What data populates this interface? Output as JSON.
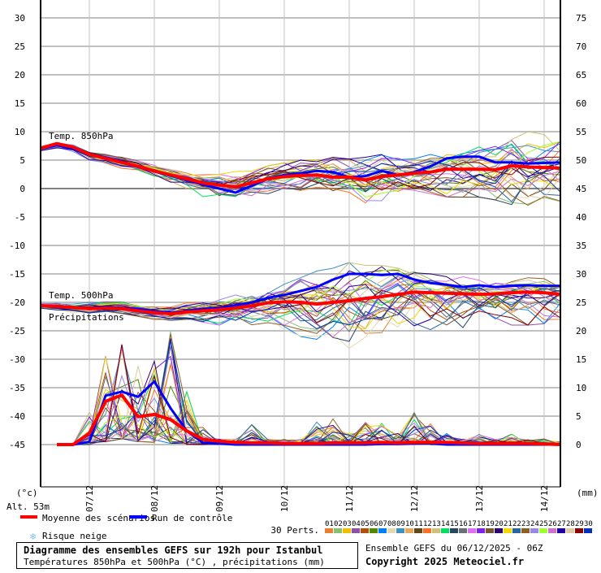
{
  "chart_data": {
    "type": "line",
    "left_axis": {
      "unit_label": "(°c)",
      "ticks": [
        30,
        25,
        20,
        15,
        10,
        5,
        0,
        -5,
        -10,
        -15,
        -20,
        -25,
        -30,
        -35,
        -40,
        -45
      ],
      "range": [
        -45,
        30
      ]
    },
    "right_axis": {
      "unit_label": "(mm)",
      "ticks": [
        75,
        70,
        65,
        60,
        55,
        50,
        45,
        40,
        35,
        30,
        25,
        20,
        15,
        10,
        5,
        0
      ],
      "range": [
        0,
        75
      ]
    },
    "x_tick_labels": [
      "07/12",
      "08/12",
      "09/12",
      "10/12",
      "11/12",
      "12/12",
      "13/12",
      "14/12"
    ],
    "grid": true,
    "series_labels": {
      "t850": "Temp. 850hPa",
      "t500": "Temp. 500hPa",
      "precip": "Précipitations"
    },
    "t850": {
      "mean": [
        7.1,
        7.9,
        7.3,
        6.0,
        5.3,
        4.6,
        3.9,
        3.1,
        2.4,
        1.7,
        1.0,
        0.6,
        0.3,
        1.0,
        1.7,
        2.1,
        2.3,
        2.4,
        2.0,
        2.0,
        1.5,
        2.1,
        2.4,
        2.7,
        2.9,
        3.4,
        3.4,
        3.4,
        3.3,
        4.0,
        3.8,
        3.7,
        3.6
      ],
      "control": [
        7.0,
        7.6,
        7.0,
        5.8,
        5.4,
        4.8,
        3.8,
        3.0,
        2.3,
        1.5,
        0.7,
        0.0,
        -0.7,
        0.5,
        1.7,
        2.4,
        2.7,
        3.1,
        2.9,
        2.0,
        2.2,
        3.1,
        2.4,
        2.9,
        3.9,
        5.3,
        5.6,
        5.6,
        4.6,
        4.6,
        4.4,
        4.5,
        4.6
      ],
      "members_min": [
        6.5,
        7.0,
        6.5,
        5.0,
        4.3,
        3.5,
        2.8,
        2.0,
        1.0,
        0.0,
        -1.5,
        -2.5,
        -2.5,
        -2.0,
        -1.5,
        -0.5,
        -1.5,
        -1.0,
        -1.5,
        -1.0,
        -2.5,
        -2.5,
        -1.5,
        -1.0,
        -1.0,
        -1.5,
        -1.5,
        -1.5,
        -2.0,
        -3.0,
        -3.0,
        -2.5,
        -2.5
      ],
      "members_max": [
        7.6,
        8.0,
        7.8,
        6.5,
        6.2,
        5.8,
        5.0,
        4.2,
        3.5,
        2.8,
        2.5,
        2.5,
        3.0,
        3.5,
        4.0,
        4.5,
        5.0,
        5.0,
        5.5,
        5.2,
        5.5,
        6.0,
        6.0,
        6.0,
        6.0,
        6.5,
        7.0,
        8.0,
        8.5,
        10.0,
        10.0,
        9.5,
        10.5
      ]
    },
    "t500": {
      "mean": [
        -20.6,
        -20.7,
        -20.9,
        -21.1,
        -21.0,
        -21.1,
        -21.5,
        -21.8,
        -22.0,
        -21.7,
        -21.5,
        -21.3,
        -21.0,
        -20.6,
        -20.1,
        -19.9,
        -20.0,
        -20.3,
        -20.0,
        -19.7,
        -19.3,
        -19.0,
        -18.6,
        -18.2,
        -18.3,
        -18.4,
        -18.5,
        -18.6,
        -18.5,
        -18.3,
        -18.2,
        -18.3,
        -18.6
      ],
      "control": [
        -20.5,
        -20.8,
        -20.9,
        -21.0,
        -20.8,
        -21.0,
        -21.2,
        -21.5,
        -21.8,
        -21.5,
        -21.2,
        -21.0,
        -20.5,
        -20.0,
        -19.2,
        -18.7,
        -18.0,
        -17.3,
        -16.0,
        -15.0,
        -15.0,
        -15.2,
        -15.0,
        -16.0,
        -16.6,
        -16.9,
        -17.3,
        -17.0,
        -17.3,
        -17.1,
        -17.0,
        -17.1,
        -17.1
      ],
      "members_min": [
        -21.2,
        -21.5,
        -21.8,
        -22.0,
        -22.0,
        -22.3,
        -22.8,
        -23.0,
        -23.2,
        -23.0,
        -23.5,
        -24.0,
        -24.0,
        -24.5,
        -24.0,
        -25.5,
        -26.0,
        -26.5,
        -27.5,
        -29.0,
        -28.5,
        -27.0,
        -26.5,
        -26.0,
        -25.5,
        -25.0,
        -25.0,
        -24.5,
        -24.0,
        -24.0,
        -24.0,
        -24.5,
        -24.5
      ],
      "members_max": [
        -20.0,
        -20.0,
        -20.2,
        -20.0,
        -19.8,
        -19.8,
        -20.0,
        -20.3,
        -20.5,
        -20.0,
        -19.5,
        -19.0,
        -18.5,
        -18.0,
        -17.0,
        -16.5,
        -15.5,
        -14.5,
        -14.0,
        -13.0,
        -13.5,
        -13.5,
        -14.0,
        -14.5,
        -15.0,
        -15.5,
        -15.5,
        -16.0,
        -16.0,
        -16.0,
        -15.5,
        -15.5,
        -16.0
      ]
    },
    "precip": {
      "mean": [
        null,
        0,
        0,
        2.0,
        7.6,
        8.7,
        4.9,
        5.3,
        4.4,
        2.4,
        0.9,
        0.6,
        0.4,
        0.3,
        0.3,
        0.2,
        0.2,
        0.2,
        0.3,
        0.3,
        0.3,
        0.4,
        0.3,
        0.4,
        0.4,
        0.4,
        0.3,
        0.2,
        0.2,
        0.2,
        0.2,
        0.1,
        0.0
      ],
      "control": [
        null,
        0,
        0,
        0.5,
        8.6,
        9.3,
        8.4,
        11.1,
        6.4,
        2.4,
        0.3,
        0.2,
        0,
        0,
        0,
        0,
        0,
        0,
        0,
        0,
        0,
        0.1,
        0.1,
        0.2,
        0.2,
        0,
        0,
        0,
        0,
        0,
        0,
        0,
        0
      ],
      "members_min": [
        null,
        0,
        0,
        0,
        0.5,
        1,
        0.5,
        0.3,
        0.2,
        0,
        0,
        0,
        0,
        0,
        0,
        0,
        0,
        0,
        0,
        0,
        0,
        0,
        0,
        0,
        0,
        0,
        0,
        0,
        0,
        0,
        0,
        0,
        0
      ],
      "members_max": [
        null,
        0,
        0.1,
        6,
        22,
        19,
        14,
        15,
        20,
        10,
        3,
        1,
        1,
        4,
        1,
        1,
        1,
        5,
        5,
        2,
        4,
        5,
        2,
        6,
        4,
        2,
        1,
        2,
        1,
        2,
        1,
        1,
        0.5
      ]
    }
  },
  "colors": {
    "mean": "#ff0000",
    "control": "#0000ff",
    "snow": "#80c0f0",
    "members": [
      "#e88030",
      "#88c070",
      "#f0c000",
      "#9050a8",
      "#b05010",
      "#508800",
      "#0080ff",
      "#e8d8b0",
      "#4090c0",
      "#e8a858",
      "#604818",
      "#ff7020",
      "#d0c078",
      "#00e060",
      "#284860",
      "#687078",
      "#e070f0",
      "#8020f0",
      "#785830",
      "#300070",
      "#f0d800",
      "#2868a0",
      "#906020",
      "#9888e8",
      "#a0ff30",
      "#d070d0",
      "#2000a0",
      "#e0c8a0",
      "#880000",
      "#0030c0"
    ]
  },
  "legend": {
    "altitude": "Alt. 53m",
    "mean_label": "Moyenne des scénarios",
    "control_label": "Run de contrôle",
    "snow_label": "Risque neige",
    "perts_label": "30 Perts.",
    "member_numbers": [
      "01",
      "02",
      "03",
      "04",
      "05",
      "06",
      "07",
      "08",
      "09",
      "10",
      "11",
      "12",
      "13",
      "14",
      "15",
      "16",
      "17",
      "18",
      "19",
      "20",
      "21",
      "22",
      "23",
      "24",
      "25",
      "26",
      "27",
      "28",
      "29",
      "30"
    ]
  },
  "footer": {
    "title": "Diagramme des ensembles GEFS sur 192h pour Istanbul",
    "subtitle": "Températures 850hPa et 500hPa (°C) , précipitations (mm)",
    "run": "Ensemble GEFS du 06/12/2025 - 06Z",
    "copyright": "Copyright 2025 Meteociel.fr"
  }
}
